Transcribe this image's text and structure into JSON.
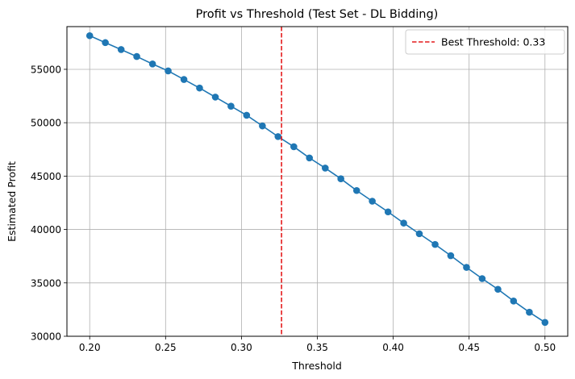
{
  "chart_data": {
    "type": "line",
    "title": "Profit vs Threshold (Test Set - DL Bidding)",
    "xlabel": "Threshold",
    "ylabel": "Estimated Profit",
    "xlim": [
      0.185,
      0.515
    ],
    "ylim": [
      30000,
      59000
    ],
    "xticks": [
      0.2,
      0.25,
      0.3,
      0.35,
      0.4,
      0.45,
      0.5
    ],
    "xtick_labels": [
      "0.20",
      "0.25",
      "0.30",
      "0.35",
      "0.40",
      "0.45",
      "0.50"
    ],
    "yticks": [
      30000,
      35000,
      40000,
      45000,
      50000,
      55000
    ],
    "ytick_labels": [
      "30000",
      "35000",
      "40000",
      "45000",
      "50000",
      "55000"
    ],
    "grid": true,
    "legend_position": "top-right",
    "series": [
      {
        "color": "#1f77b4",
        "marker": "circle",
        "x": [
          0.2,
          0.2103,
          0.2207,
          0.231,
          0.2414,
          0.2517,
          0.2621,
          0.2724,
          0.2828,
          0.2931,
          0.3034,
          0.3138,
          0.3241,
          0.3345,
          0.3448,
          0.3552,
          0.3655,
          0.3759,
          0.3862,
          0.3966,
          0.4069,
          0.4172,
          0.4276,
          0.4379,
          0.4483,
          0.4586,
          0.469,
          0.4793,
          0.4897,
          0.5
        ],
        "values": [
          58150,
          57500,
          56850,
          56200,
          55500,
          54850,
          54050,
          53250,
          52400,
          51550,
          50700,
          49700,
          48700,
          47750,
          46700,
          45750,
          44750,
          43650,
          42650,
          41650,
          40600,
          39600,
          38600,
          37550,
          36450,
          35400,
          34400,
          33300,
          32250,
          31300
        ]
      }
    ],
    "reference_line": {
      "orientation": "vertical",
      "x": 0.3264,
      "color": "#e41a1c",
      "style": "dashed",
      "label": "Best Threshold: 0.33"
    }
  }
}
